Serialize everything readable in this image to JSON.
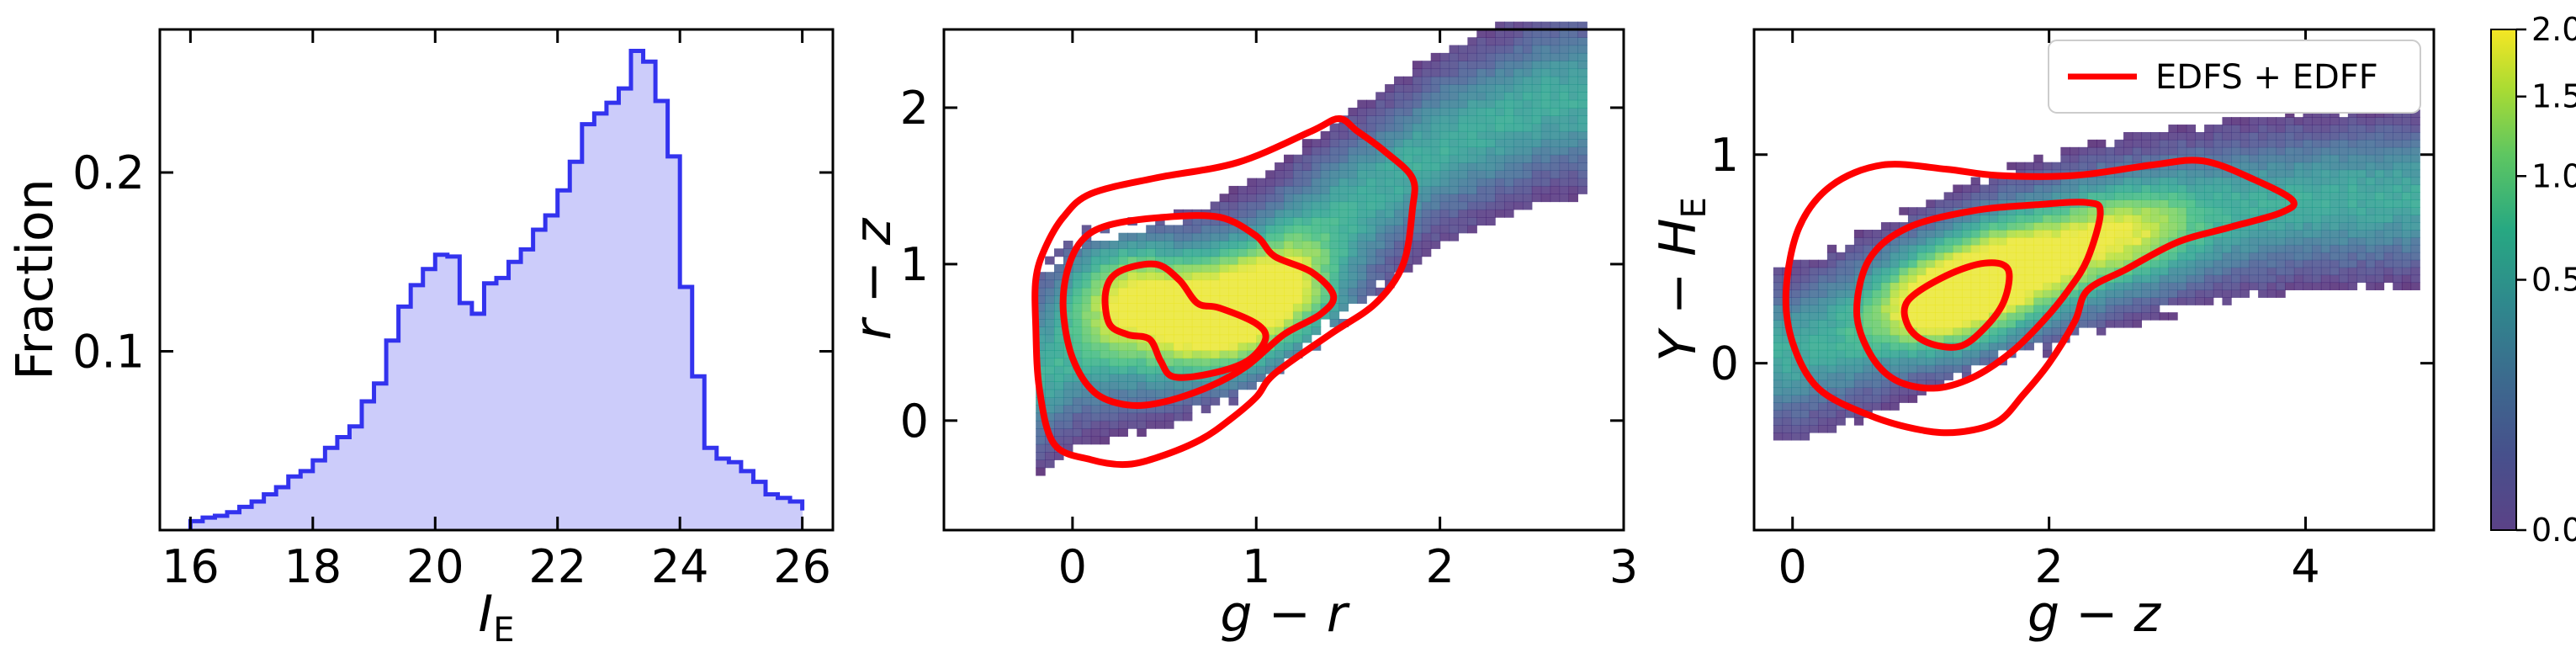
{
  "chart_data": [
    {
      "type": "histogram",
      "xlabel": "I",
      "xlabel_sub": "E",
      "ylabel": "Fraction",
      "xlim": [
        15.5,
        26.5
      ],
      "ylim": [
        0,
        0.28
      ],
      "xticks": [
        16,
        18,
        20,
        22,
        24,
        26
      ],
      "xtick_labels": [
        "16",
        "18",
        "20",
        "22",
        "24",
        "26"
      ],
      "yticks": [
        0.1,
        0.2
      ],
      "ytick_labels": [
        "0.1",
        "0.2"
      ],
      "colors": {
        "edge": "#3333ee",
        "fill": "#ccccfa"
      },
      "bin_edges": [
        16.0,
        16.2,
        16.4,
        16.6,
        16.8,
        17.0,
        17.2,
        17.4,
        17.6,
        17.8,
        18.0,
        18.2,
        18.4,
        18.6,
        18.8,
        19.0,
        19.2,
        19.4,
        19.6,
        19.8,
        20.0,
        20.2,
        20.4,
        20.6,
        20.8,
        21.0,
        21.2,
        21.4,
        21.6,
        21.8,
        22.0,
        22.2,
        22.4,
        22.6,
        22.8,
        23.0,
        23.2,
        23.4,
        23.6,
        23.8,
        24.0,
        24.2,
        24.4,
        24.6,
        24.8,
        25.0,
        25.2,
        25.4,
        25.6,
        25.8,
        26.0
      ],
      "values": [
        0.005,
        0.007,
        0.008,
        0.01,
        0.013,
        0.016,
        0.02,
        0.024,
        0.03,
        0.033,
        0.039,
        0.046,
        0.052,
        0.058,
        0.072,
        0.082,
        0.106,
        0.125,
        0.137,
        0.146,
        0.154,
        0.153,
        0.127,
        0.121,
        0.138,
        0.141,
        0.15,
        0.157,
        0.168,
        0.176,
        0.19,
        0.206,
        0.227,
        0.233,
        0.239,
        0.247,
        0.268,
        0.262,
        0.24,
        0.209,
        0.136,
        0.086,
        0.046,
        0.04,
        0.038,
        0.033,
        0.027,
        0.02,
        0.018,
        0.016,
        0.011
      ]
    },
    {
      "type": "heatmap",
      "xlabel": "g − r",
      "ylabel": "r − z",
      "xlim": [
        -0.7,
        3.0
      ],
      "ylim": [
        -0.7,
        2.5
      ],
      "xticks": [
        0,
        1,
        2,
        3
      ],
      "xtick_labels": [
        "0",
        "1",
        "2",
        "3"
      ],
      "yticks": [
        0,
        1,
        2
      ],
      "ytick_labels": [
        "0",
        "1",
        "2"
      ],
      "ridge": [
        [
          -0.15,
          0.3
        ],
        [
          0.0,
          0.45
        ],
        [
          0.5,
          0.6
        ],
        [
          1.0,
          0.9
        ],
        [
          1.5,
          1.35
        ],
        [
          2.0,
          1.75
        ],
        [
          2.6,
          2.05
        ]
      ],
      "peaks": [
        [
          0.3,
          0.85,
          1.8
        ],
        [
          0.8,
          0.6,
          1.9
        ],
        [
          1.2,
          0.8,
          1.6
        ]
      ],
      "contours": [
        [
          [
            -0.05,
            1.3
          ],
          [
            0.1,
            1.45
          ],
          [
            0.45,
            1.55
          ],
          [
            0.9,
            1.65
          ],
          [
            1.3,
            1.85
          ],
          [
            1.45,
            1.93
          ],
          [
            1.55,
            1.85
          ],
          [
            1.7,
            1.72
          ],
          [
            1.85,
            1.55
          ],
          [
            1.85,
            1.35
          ],
          [
            1.8,
            1.0
          ],
          [
            1.65,
            0.75
          ],
          [
            1.4,
            0.55
          ],
          [
            1.1,
            0.3
          ],
          [
            1.0,
            0.15
          ],
          [
            0.85,
            0.0
          ],
          [
            0.7,
            -0.12
          ],
          [
            0.5,
            -0.22
          ],
          [
            0.3,
            -0.28
          ],
          [
            0.1,
            -0.25
          ],
          [
            -0.1,
            -0.15
          ],
          [
            -0.18,
            0.2
          ],
          [
            -0.2,
            0.6
          ],
          [
            -0.2,
            0.9
          ],
          [
            -0.15,
            1.1
          ]
        ],
        [
          [
            0.05,
            1.15
          ],
          [
            0.2,
            1.25
          ],
          [
            0.5,
            1.3
          ],
          [
            0.8,
            1.3
          ],
          [
            1.0,
            1.18
          ],
          [
            1.1,
            1.05
          ],
          [
            1.3,
            0.95
          ],
          [
            1.42,
            0.8
          ],
          [
            1.35,
            0.68
          ],
          [
            1.15,
            0.55
          ],
          [
            0.95,
            0.35
          ],
          [
            0.75,
            0.22
          ],
          [
            0.5,
            0.12
          ],
          [
            0.3,
            0.1
          ],
          [
            0.12,
            0.18
          ],
          [
            0.0,
            0.4
          ],
          [
            -0.05,
            0.7
          ],
          [
            -0.03,
            0.95
          ]
        ],
        [
          [
            0.25,
            0.95
          ],
          [
            0.45,
            1.0
          ],
          [
            0.58,
            0.9
          ],
          [
            0.68,
            0.75
          ],
          [
            0.8,
            0.72
          ],
          [
            1.0,
            0.62
          ],
          [
            1.05,
            0.52
          ],
          [
            0.95,
            0.38
          ],
          [
            0.75,
            0.3
          ],
          [
            0.55,
            0.28
          ],
          [
            0.48,
            0.38
          ],
          [
            0.42,
            0.52
          ],
          [
            0.3,
            0.55
          ],
          [
            0.2,
            0.62
          ],
          [
            0.18,
            0.82
          ]
        ]
      ]
    },
    {
      "type": "heatmap",
      "xlabel": "g − z",
      "ylabel": "Y − H",
      "ylabel_sub": "E",
      "xlim": [
        -0.3,
        5.0
      ],
      "ylim": [
        -0.8,
        1.6
      ],
      "xticks": [
        0,
        2,
        4
      ],
      "xtick_labels": [
        "0",
        "2",
        "4"
      ],
      "yticks": [
        0,
        1
      ],
      "ytick_labels": [
        "0",
        "1"
      ],
      "ridge": [
        [
          0.0,
          0.05
        ],
        [
          0.5,
          0.15
        ],
        [
          1.0,
          0.3
        ],
        [
          1.5,
          0.45
        ],
        [
          2.0,
          0.55
        ],
        [
          3.0,
          0.7
        ],
        [
          4.0,
          0.78
        ],
        [
          4.7,
          0.8
        ]
      ],
      "peaks": [
        [
          1.2,
          0.28,
          2.0
        ],
        [
          1.8,
          0.45,
          1.6
        ],
        [
          2.6,
          0.62,
          1.2
        ]
      ],
      "contours": [
        [
          [
            0.05,
            0.65
          ],
          [
            0.3,
            0.85
          ],
          [
            0.7,
            0.95
          ],
          [
            1.2,
            0.93
          ],
          [
            1.6,
            0.9
          ],
          [
            2.2,
            0.9
          ],
          [
            2.8,
            0.95
          ],
          [
            3.2,
            0.97
          ],
          [
            3.6,
            0.88
          ],
          [
            3.9,
            0.78
          ],
          [
            3.8,
            0.72
          ],
          [
            3.4,
            0.65
          ],
          [
            3.0,
            0.58
          ],
          [
            2.6,
            0.45
          ],
          [
            2.3,
            0.35
          ],
          [
            2.2,
            0.2
          ],
          [
            2.0,
            0.0
          ],
          [
            1.8,
            -0.15
          ],
          [
            1.6,
            -0.28
          ],
          [
            1.3,
            -0.33
          ],
          [
            1.0,
            -0.32
          ],
          [
            0.6,
            -0.25
          ],
          [
            0.2,
            -0.12
          ],
          [
            0.0,
            0.1
          ],
          [
            -0.05,
            0.35
          ]
        ],
        [
          [
            0.6,
            0.5
          ],
          [
            0.9,
            0.65
          ],
          [
            1.4,
            0.73
          ],
          [
            1.9,
            0.76
          ],
          [
            2.3,
            0.77
          ],
          [
            2.4,
            0.72
          ],
          [
            2.3,
            0.5
          ],
          [
            2.15,
            0.35
          ],
          [
            1.95,
            0.2
          ],
          [
            1.7,
            0.05
          ],
          [
            1.4,
            -0.07
          ],
          [
            1.1,
            -0.12
          ],
          [
            0.8,
            -0.08
          ],
          [
            0.6,
            0.05
          ],
          [
            0.5,
            0.25
          ]
        ],
        [
          [
            0.9,
            0.3
          ],
          [
            1.2,
            0.42
          ],
          [
            1.5,
            0.48
          ],
          [
            1.68,
            0.45
          ],
          [
            1.65,
            0.3
          ],
          [
            1.5,
            0.17
          ],
          [
            1.3,
            0.08
          ],
          [
            1.05,
            0.1
          ],
          [
            0.9,
            0.18
          ]
        ]
      ]
    }
  ],
  "legend": {
    "label": "EDFS + EDFF",
    "color": "#ff0000",
    "placement": "upper-right"
  },
  "colorbar": {
    "cmap": "viridis",
    "ticks": [
      0.0,
      0.5,
      1.0,
      1.5,
      2.0
    ],
    "tick_labels": [
      "0.0",
      "0.5",
      "1.0",
      "1.5",
      "2.0"
    ]
  }
}
